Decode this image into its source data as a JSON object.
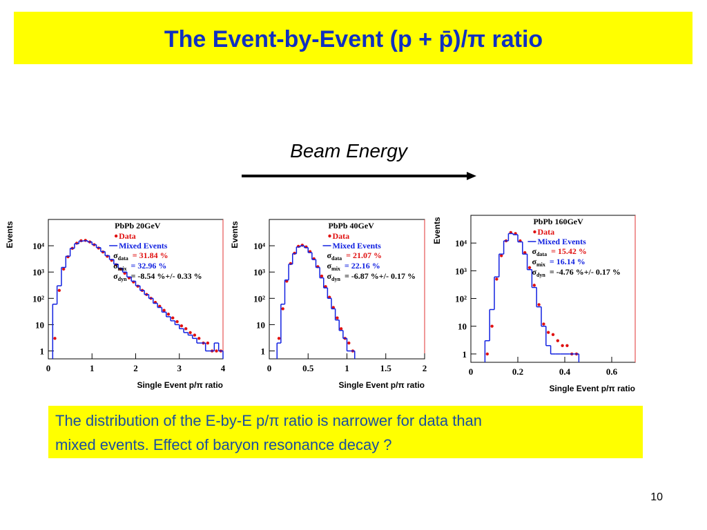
{
  "slide": {
    "title": "The Event-by-Event  (p + p̄)/π ratio",
    "arrow_label": "Beam Energy",
    "note_lines": [
      "The distribution of the E-by-E  p/π ratio  is narrower for data than",
      "mixed events. Effect of baryon resonance decay ?"
    ],
    "page_number": "10"
  },
  "chart_data": [
    {
      "type": "histogram",
      "title": "PbPb 20GeV",
      "x_label": "Single Event p/π ratio",
      "y_label": "Events",
      "log_y": true,
      "bins": [
        0.1,
        0.2,
        0.3,
        0.4,
        0.5,
        0.6,
        0.7,
        0.8,
        0.9,
        1.0,
        1.1,
        1.2,
        1.3,
        1.4,
        1.5,
        1.6,
        1.7,
        1.8,
        1.9,
        2.0,
        2.1,
        2.2,
        2.3,
        2.4,
        2.5,
        2.6,
        2.7,
        2.8,
        2.9,
        3.0,
        3.1,
        3.2,
        3.3,
        3.4,
        3.5,
        3.6,
        3.7,
        3.8,
        3.9,
        4.0
      ],
      "series": [
        {
          "name": "Data",
          "color": "#e01010",
          "values": [
            3,
            200,
            1300,
            3800,
            8000,
            12500,
            15500,
            16000,
            14000,
            11000,
            8200,
            5800,
            4000,
            2800,
            1900,
            1300,
            900,
            600,
            420,
            290,
            200,
            140,
            100,
            70,
            50,
            35,
            25,
            18,
            13,
            9,
            7,
            5,
            4,
            3,
            2,
            2,
            1,
            1,
            1
          ]
        },
        {
          "name": "Mixed Events",
          "color": "#1020e0",
          "values": [
            60,
            300,
            1500,
            4000,
            8000,
            12000,
            15000,
            15500,
            14000,
            11000,
            8500,
            6000,
            4200,
            3000,
            2000,
            1400,
            1000,
            650,
            450,
            300,
            200,
            140,
            100,
            65,
            45,
            30,
            20,
            14,
            10,
            7,
            5,
            4,
            3,
            2,
            2,
            1,
            1,
            2,
            1
          ]
        }
      ],
      "stats": [
        {
          "label": "σ",
          "sub": "data",
          "text": "= 31.84 %",
          "color": "#e01010"
        },
        {
          "label": "σ",
          "sub": "mix",
          "text": "= 32.96 %",
          "color": "#1020e0"
        },
        {
          "label": "σ",
          "sub": "dyn",
          "text": "=   -8.54 %+/- 0.33 %",
          "color": "#000000"
        }
      ],
      "xlim": [
        0,
        4
      ],
      "xticks": [
        0,
        1,
        2,
        3,
        4
      ],
      "ylim": [
        0.5,
        100000
      ],
      "yticks": [
        1,
        10,
        {
          "value": 100,
          "label": "10²"
        },
        {
          "value": 1000,
          "label": "10³"
        },
        {
          "value": 10000,
          "label": "10⁴"
        }
      ]
    },
    {
      "type": "histogram",
      "title": "PbPb 40GeV",
      "x_label": "Single Event p/π ratio",
      "y_label": "Events",
      "log_y": true,
      "bins": [
        0.1,
        0.15,
        0.2,
        0.25,
        0.3,
        0.35,
        0.4,
        0.45,
        0.5,
        0.55,
        0.6,
        0.65,
        0.7,
        0.75,
        0.8,
        0.85,
        0.9,
        0.95,
        1.0,
        1.05,
        1.1
      ],
      "series": [
        {
          "name": "Data",
          "color": "#e01010",
          "values": [
            3,
            40,
            450,
            2100,
            5200,
            9500,
            10500,
            9000,
            6000,
            3200,
            1600,
            700,
            280,
            110,
            45,
            18,
            7,
            3,
            2,
            1
          ]
        },
        {
          "name": "Mixed Events",
          "color": "#1020e0",
          "values": [
            2,
            60,
            500,
            2000,
            5000,
            9000,
            10000,
            8500,
            5500,
            3000,
            1500,
            600,
            250,
            100,
            40,
            15,
            6,
            3,
            1,
            1
          ]
        }
      ],
      "stats": [
        {
          "label": "σ",
          "sub": "data",
          "text": "= 21.07 %",
          "color": "#e01010"
        },
        {
          "label": "σ",
          "sub": "mix",
          "text": "= 22.16 %",
          "color": "#1020e0"
        },
        {
          "label": "σ",
          "sub": "dyn",
          "text": "=   -6.87 %+/- 0.17 %",
          "color": "#000000"
        }
      ],
      "xlim": [
        0,
        2
      ],
      "xticks": [
        0,
        0.5,
        1,
        1.5,
        2
      ],
      "ylim": [
        0.5,
        100000
      ],
      "yticks": [
        1,
        10,
        {
          "value": 100,
          "label": "10²"
        },
        {
          "value": 1000,
          "label": "10³"
        },
        {
          "value": 10000,
          "label": "10⁴"
        }
      ]
    },
    {
      "type": "histogram",
      "title": "PbPb 160GeV",
      "x_label": "Single Event p/π ratio",
      "y_label": "Events",
      "log_y": true,
      "bins": [
        0.06,
        0.08,
        0.1,
        0.12,
        0.14,
        0.16,
        0.18,
        0.2,
        0.22,
        0.24,
        0.26,
        0.28,
        0.3,
        0.32,
        0.34,
        0.36,
        0.38,
        0.4,
        0.42,
        0.44,
        0.46
      ],
      "series": [
        {
          "name": "Data",
          "color": "#e01010",
          "values": [
            1,
            10,
            500,
            3500,
            12000,
            24000,
            22000,
            12000,
            4500,
            1300,
            300,
            60,
            12,
            6,
            5,
            3,
            2,
            2,
            1,
            1
          ]
        },
        {
          "name": "Mixed Events",
          "color": "#1020e0",
          "values": [
            3,
            40,
            600,
            4000,
            12000,
            22000,
            20000,
            11000,
            4000,
            1100,
            250,
            50,
            10,
            2,
            1,
            1,
            1,
            1,
            1,
            1
          ]
        }
      ],
      "stats": [
        {
          "label": "σ",
          "sub": "data",
          "text": "= 15.42 %",
          "color": "#e01010"
        },
        {
          "label": "σ",
          "sub": "mix",
          "text": "= 16.14 %",
          "color": "#1020e0"
        },
        {
          "label": "σ",
          "sub": "dyn",
          "text": "=   -4.76 %+/- 0.17 %",
          "color": "#000000"
        }
      ],
      "xlim": [
        0,
        0.7
      ],
      "xticks": [
        0,
        0.2,
        0.4,
        0.6
      ],
      "ylim": [
        0.5,
        100000
      ],
      "yticks": [
        1,
        10,
        {
          "value": 100,
          "label": "10²"
        },
        {
          "value": 1000,
          "label": "10³"
        },
        {
          "value": 10000,
          "label": "10⁴"
        }
      ]
    }
  ]
}
